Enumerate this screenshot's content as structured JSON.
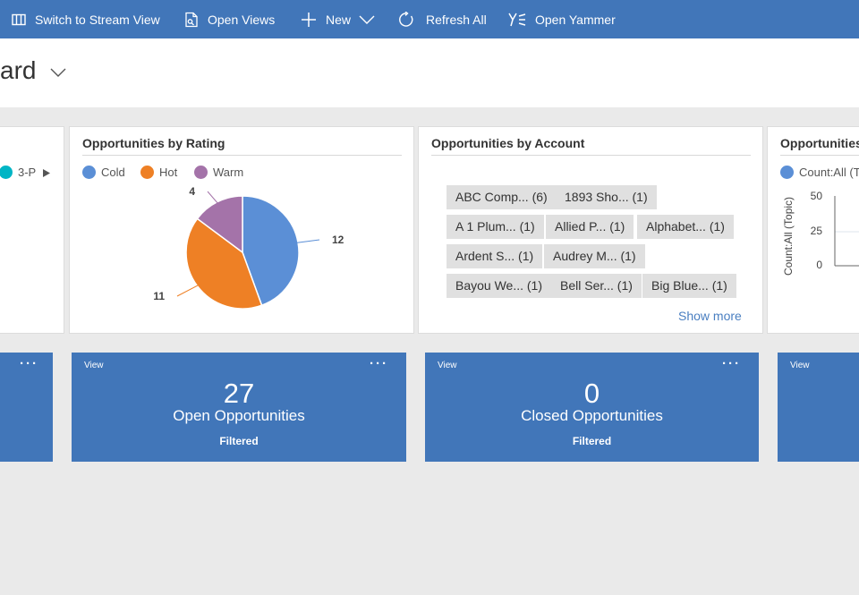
{
  "commandbar": {
    "items": [
      {
        "label": "Switch to Stream View",
        "icon": "stream-view-icon"
      },
      {
        "label": "Open Views",
        "icon": "open-views-icon"
      },
      {
        "label": "New",
        "icon": "plus-icon"
      },
      {
        "label": "Refresh All",
        "icon": "refresh-icon"
      },
      {
        "label": "Open Yammer",
        "icon": "yammer-icon"
      }
    ]
  },
  "header": {
    "title_fragment": "ard"
  },
  "panels": {
    "left_partial": {
      "legend_label": "3-P"
    },
    "rating": {
      "title": "Opportunities by Rating",
      "legend": [
        {
          "label": "Cold",
          "color": "#5b8fd6"
        },
        {
          "label": "Hot",
          "color": "#ee8025"
        },
        {
          "label": "Warm",
          "color": "#a473a9"
        }
      ],
      "slice_labels": [
        "12",
        "11",
        "4"
      ]
    },
    "account": {
      "title": "Opportunities by Account",
      "tags": [
        "ABC Comp... (6)",
        "1893 Sho... (1)",
        "A 1 Plum... (1)",
        "Allied P... (1)",
        "Alphabet... (1)",
        "Ardent S... (1)",
        "Audrey M... (1)",
        "Bayou We... (1)",
        "Bell Ser... (1)",
        "Big Blue... (1)"
      ],
      "show_more": "Show more"
    },
    "topic": {
      "title": "Opportunities",
      "legend_label": "Count:All (To",
      "ylabel": "Count:All (Topic)",
      "yticks": [
        "50",
        "25",
        "0"
      ]
    }
  },
  "tiles": [
    {
      "view_label": "View",
      "count": "27",
      "label": "Open Opportunities",
      "filter": "Filtered",
      "more": "···"
    },
    {
      "view_label": "View",
      "count": "0",
      "label": "Closed Opportunities",
      "filter": "Filtered",
      "more": "···"
    },
    {
      "view_label": "View"
    }
  ],
  "chart_data": [
    {
      "type": "pie",
      "title": "Opportunities by Rating",
      "categories": [
        "Cold",
        "Hot",
        "Warm"
      ],
      "values": [
        12,
        11,
        4
      ],
      "colors": [
        "#5b8fd6",
        "#ee8025",
        "#a473a9"
      ],
      "legend": "top-left"
    },
    {
      "type": "bar",
      "title": "Opportunities",
      "ylabel": "Count:All (Topic)",
      "ylim": [
        0,
        50
      ],
      "yticks": [
        0,
        25,
        50
      ],
      "series": [
        {
          "name": "Count:All (To",
          "values": []
        }
      ]
    }
  ]
}
